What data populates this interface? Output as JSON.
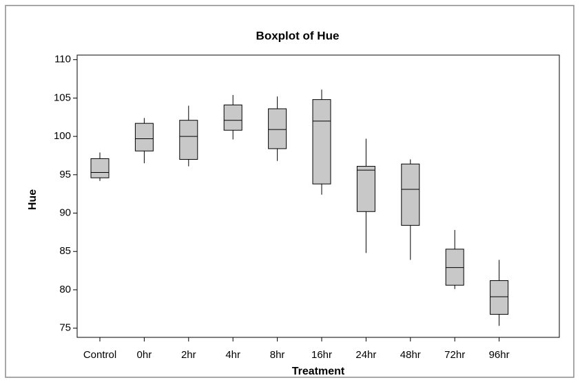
{
  "chart_data": {
    "type": "boxplot",
    "title": "Boxplot of Hue",
    "x_label": "Treatment",
    "y_label": "Hue",
    "categories": [
      "Control",
      "0hr",
      "2hr",
      "4hr",
      "8hr",
      "16hr",
      "24hr",
      "48hr",
      "72hr",
      "96hr"
    ],
    "boxes": [
      {
        "min": 94.2,
        "q1": 94.6,
        "median": 95.3,
        "q3": 97.1,
        "max": 97.9
      },
      {
        "min": 96.5,
        "q1": 98.1,
        "median": 99.7,
        "q3": 101.7,
        "max": 102.4
      },
      {
        "min": 96.1,
        "q1": 97.0,
        "median": 100.0,
        "q3": 102.1,
        "max": 104.0
      },
      {
        "min": 99.6,
        "q1": 100.8,
        "median": 102.1,
        "q3": 104.1,
        "max": 105.4
      },
      {
        "min": 96.8,
        "q1": 98.4,
        "median": 100.9,
        "q3": 103.6,
        "max": 105.2
      },
      {
        "min": 92.4,
        "q1": 93.8,
        "median": 102.0,
        "q3": 104.8,
        "max": 106.1
      },
      {
        "min": 84.8,
        "q1": 90.2,
        "median": 95.6,
        "q3": 96.1,
        "max": 99.7
      },
      {
        "min": 83.9,
        "q1": 88.4,
        "median": 93.1,
        "q3": 96.4,
        "max": 97.0
      },
      {
        "min": 80.1,
        "q1": 80.6,
        "median": 82.9,
        "q3": 85.3,
        "max": 87.8
      },
      {
        "min": 75.3,
        "q1": 76.8,
        "median": 79.1,
        "q3": 81.2,
        "max": 83.9
      }
    ],
    "color": "#c8c8c8",
    "ylim": [
      73.8,
      110.6
    ],
    "yticks": [
      75,
      80,
      85,
      90,
      95,
      100,
      105,
      110
    ]
  }
}
